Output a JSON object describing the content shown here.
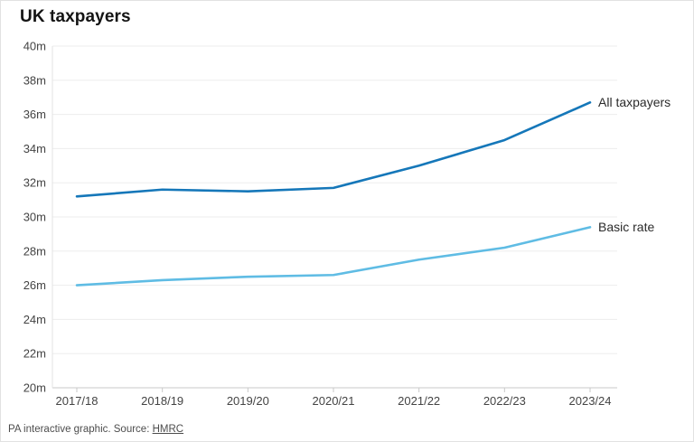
{
  "page": {
    "title": "UK taxpayers",
    "footer": {
      "prefix": "PA interactive graphic. Source: ",
      "link": "HMRC"
    }
  },
  "colors": {
    "all_taxpayers_line": "#1577b9",
    "basic_rate_line": "#5fbce4",
    "gridline": "#ededed",
    "axis_line": "#c9c9c9",
    "axis_text": "#444444",
    "label_text": "#2b2b2b"
  },
  "chart_data": {
    "type": "line",
    "title": "UK taxpayers",
    "categories": [
      "2017/18",
      "2018/19",
      "2019/20",
      "2020/21",
      "2021/22",
      "2022/23",
      "2023/24"
    ],
    "series": [
      {
        "name": "All taxpayers",
        "color": "#1577b9",
        "values": [
          31.2,
          31.6,
          31.5,
          31.7,
          33.0,
          34.5,
          36.7
        ]
      },
      {
        "name": "Basic rate",
        "color": "#5fbce4",
        "values": [
          26.0,
          26.3,
          26.5,
          26.6,
          27.5,
          28.2,
          29.4
        ]
      }
    ],
    "xlabel": "",
    "ylabel": "",
    "ylim": [
      20,
      40
    ],
    "ytick_step": 2,
    "ytick_suffix": "m",
    "grid": true,
    "legend_position": "line-end-labels"
  }
}
